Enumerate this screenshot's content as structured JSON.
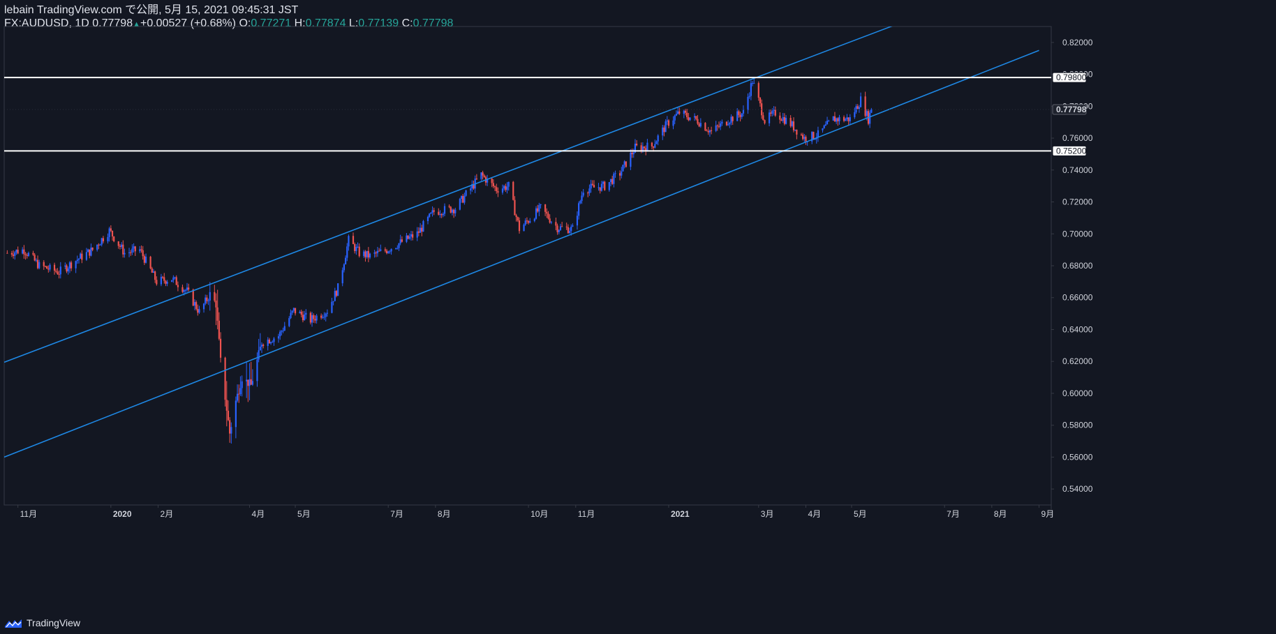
{
  "header": {
    "line1": "lebain TradingView.com で公開, 5月 15, 2021 09:45:31 JST",
    "symbol": "FX:AUDUSD, 1D",
    "last": "0.77798",
    "change": "+0.00527 (+0.68%)",
    "o_label": "O:",
    "o_value": "0.77271",
    "h_label": "H:",
    "h_value": "0.77874",
    "l_label": "L:",
    "l_value": "0.77139",
    "c_label": "C:",
    "c_value": "0.77798"
  },
  "footer": {
    "brand": "TradingView"
  },
  "colors": {
    "background": "#131722",
    "up": "#2962ff",
    "down": "#ef5350",
    "channel": "#1e88e5",
    "level": "#ffffff",
    "grid": "#363a45",
    "axis_text": "#d1d4dc",
    "change": "#26a69a"
  },
  "chart_data": {
    "type": "candlestick",
    "symbol": "FX:AUDUSD",
    "interval": "1D",
    "ylim": [
      0.53,
      0.83
    ],
    "y_ticks": [
      "0.82000",
      "0.80000",
      "0.78000",
      "0.76000",
      "0.74000",
      "0.72000",
      "0.70000",
      "0.68000",
      "0.66000",
      "0.64000",
      "0.62000",
      "0.60000",
      "0.58000",
      "0.56000",
      "0.54000"
    ],
    "x_ticks": [
      {
        "label": "11月",
        "date": "2019-11-01",
        "bold": false
      },
      {
        "label": "2020",
        "date": "2020-01-01",
        "bold": true
      },
      {
        "label": "2月",
        "date": "2020-02-01",
        "bold": false
      },
      {
        "label": "4月",
        "date": "2020-04-01",
        "bold": false
      },
      {
        "label": "5月",
        "date": "2020-05-01",
        "bold": false
      },
      {
        "label": "7月",
        "date": "2020-07-01",
        "bold": false
      },
      {
        "label": "8月",
        "date": "2020-08-01",
        "bold": false
      },
      {
        "label": "10月",
        "date": "2020-10-01",
        "bold": false
      },
      {
        "label": "11月",
        "date": "2020-11-01",
        "bold": false
      },
      {
        "label": "2021",
        "date": "2021-01-01",
        "bold": true
      },
      {
        "label": "3月",
        "date": "2021-03-01",
        "bold": false
      },
      {
        "label": "4月",
        "date": "2021-04-01",
        "bold": false
      },
      {
        "label": "5月",
        "date": "2021-05-01",
        "bold": false
      },
      {
        "label": "7月",
        "date": "2021-07-01",
        "bold": false
      },
      {
        "label": "8月",
        "date": "2021-08-01",
        "bold": false
      },
      {
        "label": "9月",
        "date": "2021-09-01",
        "bold": false
      }
    ],
    "horizontal_levels": [
      {
        "value": 0.798,
        "label": "0.79800"
      },
      {
        "value": 0.752,
        "label": "0.75200"
      }
    ],
    "last_price": {
      "value": 0.77798,
      "label": "0.77798"
    },
    "channel_lines": [
      {
        "name": "upper-channel",
        "p1": {
          "date": "2019-10-23",
          "price": 0.6195
        },
        "p2": {
          "date": "2021-05-31",
          "price": 0.8315
        }
      },
      {
        "name": "lower-channel",
        "p1": {
          "date": "2019-10-23",
          "price": 0.56
        },
        "p2": {
          "date": "2021-09-01",
          "price": 0.815
        }
      }
    ],
    "price_path": [
      [
        "2019-10-25",
        0.688
      ],
      [
        "2019-11-05",
        0.69
      ],
      [
        "2019-11-15",
        0.68
      ],
      [
        "2019-11-28",
        0.676
      ],
      [
        "2019-12-10",
        0.684
      ],
      [
        "2019-12-20",
        0.69
      ],
      [
        "2019-12-31",
        0.702
      ],
      [
        "2020-01-10",
        0.688
      ],
      [
        "2020-01-20",
        0.69
      ],
      [
        "2020-01-31",
        0.67
      ],
      [
        "2020-02-10",
        0.672
      ],
      [
        "2020-02-20",
        0.664
      ],
      [
        "2020-02-28",
        0.651
      ],
      [
        "2020-03-06",
        0.662
      ],
      [
        "2020-03-10",
        0.656
      ],
      [
        "2020-03-13",
        0.62
      ],
      [
        "2020-03-19",
        0.575
      ],
      [
        "2020-03-23",
        0.595
      ],
      [
        "2020-03-27",
        0.61
      ],
      [
        "2020-04-02",
        0.605
      ],
      [
        "2020-04-09",
        0.632
      ],
      [
        "2020-04-20",
        0.636
      ],
      [
        "2020-04-30",
        0.652
      ],
      [
        "2020-05-11",
        0.646
      ],
      [
        "2020-05-22",
        0.652
      ],
      [
        "2020-05-29",
        0.666
      ],
      [
        "2020-06-05",
        0.696
      ],
      [
        "2020-06-12",
        0.688
      ],
      [
        "2020-06-19",
        0.686
      ],
      [
        "2020-06-30",
        0.69
      ],
      [
        "2020-07-10",
        0.695
      ],
      [
        "2020-07-20",
        0.7
      ],
      [
        "2020-07-31",
        0.714
      ],
      [
        "2020-08-14",
        0.716
      ],
      [
        "2020-08-31",
        0.737
      ],
      [
        "2020-09-10",
        0.728
      ],
      [
        "2020-09-18",
        0.73
      ],
      [
        "2020-09-25",
        0.703
      ],
      [
        "2020-10-09",
        0.716
      ],
      [
        "2020-10-20",
        0.704
      ],
      [
        "2020-10-30",
        0.703
      ],
      [
        "2020-11-06",
        0.728
      ],
      [
        "2020-11-20",
        0.73
      ],
      [
        "2020-11-30",
        0.738
      ],
      [
        "2020-12-10",
        0.754
      ],
      [
        "2020-12-21",
        0.755
      ],
      [
        "2020-12-31",
        0.769
      ],
      [
        "2021-01-08",
        0.776
      ],
      [
        "2021-01-20",
        0.771
      ],
      [
        "2021-01-29",
        0.764
      ],
      [
        "2021-02-10",
        0.772
      ],
      [
        "2021-02-19",
        0.776
      ],
      [
        "2021-02-25",
        0.796
      ],
      [
        "2021-03-05",
        0.771
      ],
      [
        "2021-03-12",
        0.776
      ],
      [
        "2021-03-22",
        0.769
      ],
      [
        "2021-03-31",
        0.76
      ],
      [
        "2021-04-09",
        0.762
      ],
      [
        "2021-04-19",
        0.772
      ],
      [
        "2021-04-30",
        0.772
      ],
      [
        "2021-05-07",
        0.784
      ],
      [
        "2021-05-12",
        0.772
      ],
      [
        "2021-05-14",
        0.778
      ]
    ]
  }
}
